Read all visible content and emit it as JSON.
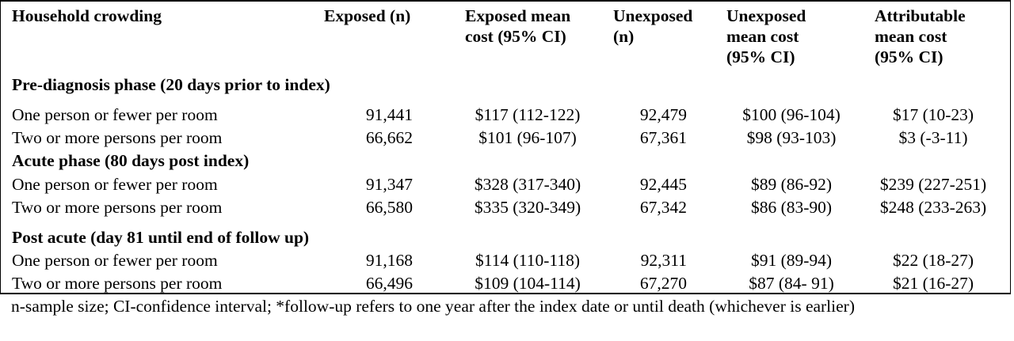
{
  "table": {
    "headers": [
      [
        "Household crowding"
      ],
      [
        "Exposed (n)"
      ],
      [
        "Exposed mean",
        "cost (95% CI)"
      ],
      [
        "Unexposed",
        "(n)"
      ],
      [
        "Unexposed",
        "mean cost",
        "(95% CI)"
      ],
      [
        "Attributable",
        "mean cost",
        "(95% CI)"
      ]
    ],
    "sections": [
      {
        "title": "Pre-diagnosis phase (20 days prior to index)",
        "rows": [
          [
            "One person or fewer per room",
            "91,441",
            "$117 (112-122)",
            "92,479",
            "$100 (96-104)",
            "$17 (10-23)"
          ],
          [
            "Two or more persons per room",
            "66,662",
            "$101 (96-107)",
            "67,361",
            "$98 (93-103)",
            "$3 (-3-11)"
          ]
        ]
      },
      {
        "title": "Acute phase (80 days post index)",
        "rows": [
          [
            "One person or fewer per room",
            "91,347",
            "$328 (317-340)",
            "92,445",
            "$89 (86-92)",
            "$239 (227-251)"
          ],
          [
            "Two or more persons per room",
            "66,580",
            "$335 (320-349)",
            "67,342",
            "$86 (83-90)",
            "$248 (233-263)"
          ]
        ]
      },
      {
        "title": "Post acute (day 81 until end of follow up)",
        "rows": [
          [
            "One person or fewer per room",
            "91,168",
            "$114 (110-118)",
            "92,311",
            "$91 (89-94)",
            "$22 (18-27)"
          ],
          [
            "Two or more persons per room",
            "66,496",
            "$109 (104-114)",
            "67,270",
            "$87 (84- 91)",
            "$21  (16-27)"
          ]
        ]
      }
    ]
  },
  "footnote": "n-sample size; CI-confidence interval; *follow-up refers to one year after the index date or until death (whichever is earlier)"
}
